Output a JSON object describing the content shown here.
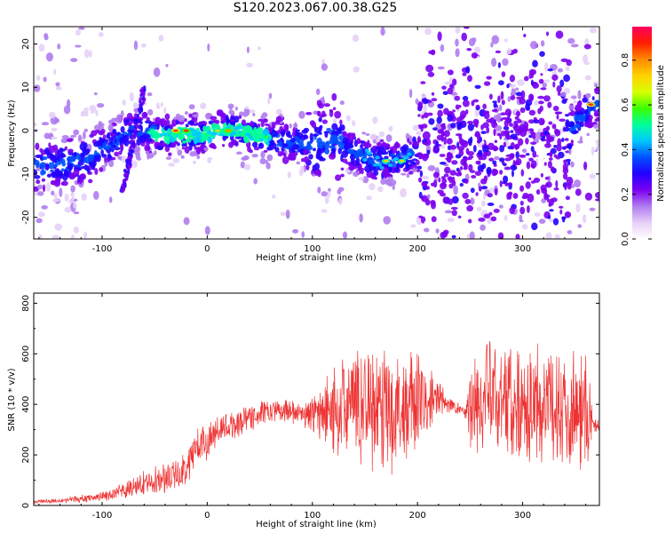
{
  "figure": {
    "title": "S120.2023.067.00.38.G25"
  },
  "chart_data": [
    {
      "type": "heatmap",
      "xlabel": "Height of straight line (km)",
      "ylabel": "Frequency (Hz)",
      "xlim": [
        -165,
        373
      ],
      "ylim": [
        -25,
        24
      ],
      "xticks": [
        -100,
        0,
        100,
        200,
        300
      ],
      "yticks": [
        -20,
        -10,
        0,
        10,
        20
      ],
      "colorbar": {
        "label": "Normalized spectral amplitude",
        "range": [
          0,
          0.95
        ],
        "ticks": [
          "0.0",
          "0.2",
          "0.4",
          "0.6",
          "0.8"
        ],
        "tick_values": [
          0,
          0.2,
          0.4,
          0.6,
          0.8
        ],
        "colormap": [
          "#ffffff",
          "#e6d0f8",
          "#b07cf0",
          "#7b00f0",
          "#2200ff",
          "#0050ff",
          "#00c8ff",
          "#00ff9a",
          "#3cff00",
          "#d8ff00",
          "#ffd200",
          "#ff8a00",
          "#ff1e00",
          "#ff0060"
        ]
      },
      "ridge": {
        "x": [
          -160,
          -140,
          -120,
          -105,
          -90,
          -80,
          -70,
          -60,
          -50,
          -40,
          -30,
          -20,
          -10,
          0,
          10,
          20,
          30,
          40,
          50,
          60,
          70,
          80,
          90,
          100,
          110,
          120,
          130,
          140,
          150,
          160,
          170,
          180,
          190,
          200,
          230,
          260,
          290,
          320,
          345,
          360,
          370
        ],
        "y": [
          -8,
          -8,
          -7,
          -5,
          -3,
          -1,
          0,
          0,
          -1,
          -1,
          -1,
          -1,
          -1,
          -1,
          0,
          0,
          0,
          -1,
          -1,
          -2,
          -2,
          -3,
          -3,
          -3,
          -3,
          -2,
          -4,
          -5,
          -6,
          -7,
          -7,
          -7,
          -6,
          -5,
          -5,
          -4,
          -4,
          -3,
          0,
          4,
          6
        ]
      },
      "streak": {
        "x": [
          -80,
          -60
        ],
        "y": [
          -14,
          10
        ]
      },
      "peaks": {
        "x": [
          -30,
          -20,
          10,
          20,
          170,
          185,
          365
        ],
        "y": [
          0,
          0,
          0,
          0,
          -7,
          -7,
          6
        ],
        "values": [
          0.9,
          0.85,
          0.75,
          0.8,
          0.7,
          0.7,
          0.9
        ]
      }
    },
    {
      "type": "line",
      "xlabel": "Height of straight line (km)",
      "ylabel": "SNR (10 * v/v)",
      "xlim": [
        -165,
        373
      ],
      "ylim": [
        0,
        840
      ],
      "xticks": [
        -100,
        0,
        100,
        200,
        300
      ],
      "yticks": [
        0,
        200,
        400,
        600,
        800
      ],
      "color": "#ee3333",
      "series": [
        {
          "x": [
            -165,
            -140,
            -110,
            -90,
            -80,
            -70,
            -60,
            -50,
            -40,
            -30,
            -25,
            -20,
            -15,
            -10,
            0,
            10,
            20,
            30,
            40,
            50,
            60,
            70,
            80,
            90,
            100,
            110,
            120,
            130,
            140,
            150,
            160,
            170,
            180,
            190,
            200,
            210,
            220,
            230,
            240,
            245,
            250,
            260,
            270,
            280,
            290,
            300,
            310,
            320,
            330,
            340,
            350,
            360,
            365,
            366,
            373
          ],
          "y": [
            15,
            20,
            30,
            45,
            55,
            70,
            90,
            100,
            110,
            120,
            130,
            150,
            200,
            230,
            260,
            290,
            310,
            330,
            350,
            365,
            370,
            375,
            370,
            365,
            360,
            365,
            380,
            390,
            400,
            410,
            400,
            395,
            380,
            390,
            400,
            410,
            420,
            400,
            380,
            370,
            390,
            410,
            420,
            430,
            420,
            410,
            405,
            400,
            395,
            390,
            385,
            380,
            370,
            320,
            310
          ],
          "spread": [
            8,
            10,
            15,
            25,
            30,
            40,
            45,
            50,
            55,
            60,
            60,
            70,
            80,
            80,
            70,
            60,
            60,
            55,
            55,
            50,
            45,
            40,
            40,
            50,
            70,
            110,
            160,
            200,
            220,
            230,
            240,
            250,
            250,
            240,
            200,
            130,
            80,
            40,
            20,
            15,
            200,
            220,
            230,
            230,
            230,
            230,
            230,
            230,
            230,
            220,
            220,
            220,
            220,
            30,
            25
          ]
        }
      ]
    }
  ]
}
